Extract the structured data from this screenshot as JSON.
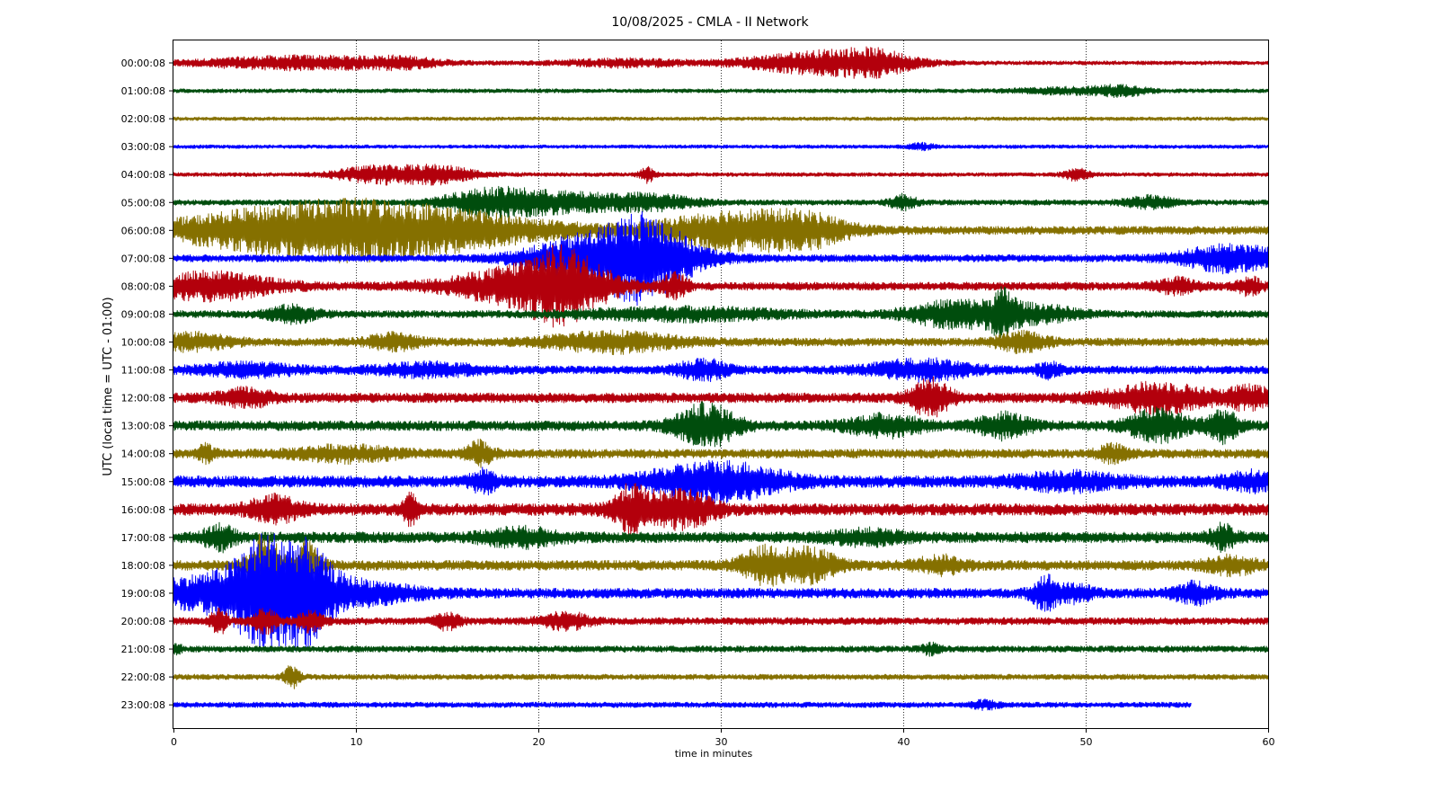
{
  "chart_data": {
    "type": "line",
    "title": "10/08/2025 - CMLA - II Network",
    "xlabel": "time in minutes",
    "ylabel": "UTC (local time = UTC - 01:00)",
    "xlim": [
      0,
      60
    ],
    "xticks": [
      0,
      10,
      20,
      30,
      40,
      50,
      60
    ],
    "grid": "vertical dotted at x ticks",
    "trace_colors": [
      "#b3000c",
      "#004d0d",
      "#857000",
      "#0000ff"
    ],
    "rows": [
      {
        "label": "00:00:08",
        "color": "#b3000c",
        "end": 60,
        "noise": 2.2,
        "events": [
          [
            7,
            4,
            7
          ],
          [
            12.5,
            1.5,
            4
          ],
          [
            24.5,
            2.5,
            4
          ],
          [
            35.5,
            3,
            12
          ],
          [
            38.5,
            1.5,
            8
          ]
        ]
      },
      {
        "label": "01:00:08",
        "color": "#004d0d",
        "end": 60,
        "noise": 2.2,
        "events": [
          [
            49,
            2,
            3
          ],
          [
            52,
            1,
            5
          ]
        ]
      },
      {
        "label": "02:00:08",
        "color": "#857000",
        "end": 60,
        "noise": 2.0,
        "events": []
      },
      {
        "label": "03:00:08",
        "color": "#0000ff",
        "end": 60,
        "noise": 2.0,
        "events": [
          [
            41,
            0.5,
            3
          ]
        ]
      },
      {
        "label": "04:00:08",
        "color": "#b3000c",
        "end": 60,
        "noise": 2.2,
        "events": [
          [
            11,
            1.5,
            9
          ],
          [
            14.5,
            1.5,
            9
          ],
          [
            26,
            0.3,
            8
          ],
          [
            49.5,
            0.5,
            6
          ]
        ]
      },
      {
        "label": "05:00:08",
        "color": "#004d0d",
        "end": 60,
        "noise": 3.0,
        "events": [
          [
            17.5,
            2,
            14
          ],
          [
            21.5,
            2,
            8
          ],
          [
            26,
            2,
            8
          ],
          [
            40,
            0.5,
            8
          ],
          [
            53.5,
            1,
            6
          ]
        ]
      },
      {
        "label": "06:00:08",
        "color": "#857000",
        "end": 60,
        "noise": 4.5,
        "events": [
          [
            8,
            6,
            18
          ],
          [
            12,
            6,
            16
          ],
          [
            31,
            3,
            20
          ],
          [
            35,
            1.5,
            10
          ]
        ]
      },
      {
        "label": "07:00:08",
        "color": "#0000ff",
        "end": 60,
        "noise": 4.0,
        "events": [
          [
            22,
            2,
            8
          ],
          [
            24.5,
            3,
            22
          ],
          [
            26,
            1.5,
            28
          ],
          [
            58,
            2,
            14
          ]
        ]
      },
      {
        "label": "08:00:08",
        "color": "#b3000c",
        "end": 60,
        "noise": 4.5,
        "events": [
          [
            2,
            2.5,
            14
          ],
          [
            19.5,
            3,
            20
          ],
          [
            21.5,
            1.5,
            26
          ],
          [
            27.5,
            0.5,
            12
          ],
          [
            55,
            0.8,
            7
          ],
          [
            59,
            0.5,
            8
          ]
        ]
      },
      {
        "label": "09:00:08",
        "color": "#004d0d",
        "end": 60,
        "noise": 4.0,
        "events": [
          [
            6.5,
            1,
            8
          ],
          [
            28,
            4,
            6
          ],
          [
            43,
            2,
            14
          ],
          [
            45.5,
            0.5,
            18
          ],
          [
            47.5,
            1.5,
            8
          ]
        ]
      },
      {
        "label": "10:00:08",
        "color": "#857000",
        "end": 60,
        "noise": 4.5,
        "events": [
          [
            1,
            1.5,
            8
          ],
          [
            12,
            1,
            8
          ],
          [
            24,
            2.5,
            10
          ],
          [
            46.5,
            1,
            10
          ]
        ]
      },
      {
        "label": "11:00:08",
        "color": "#0000ff",
        "end": 60,
        "noise": 4.5,
        "events": [
          [
            4,
            2,
            6
          ],
          [
            14,
            2,
            6
          ],
          [
            29,
            1,
            10
          ],
          [
            41,
            2,
            10
          ],
          [
            48,
            0.5,
            7
          ]
        ]
      },
      {
        "label": "12:00:08",
        "color": "#b3000c",
        "end": 60,
        "noise": 5.5,
        "events": [
          [
            4,
            1,
            8
          ],
          [
            41.5,
            0.8,
            18
          ],
          [
            54,
            2,
            14
          ],
          [
            59,
            1,
            10
          ]
        ]
      },
      {
        "label": "13:00:08",
        "color": "#004d0d",
        "end": 60,
        "noise": 5.5,
        "events": [
          [
            29.2,
            1.2,
            22
          ],
          [
            39,
            1.5,
            10
          ],
          [
            45.5,
            1,
            12
          ],
          [
            54,
            1.2,
            16
          ],
          [
            57.5,
            0.6,
            16
          ]
        ]
      },
      {
        "label": "14:00:08",
        "color": "#857000",
        "end": 60,
        "noise": 5.0,
        "events": [
          [
            1.8,
            0.3,
            9
          ],
          [
            9.5,
            2,
            7
          ],
          [
            16.8,
            0.5,
            12
          ],
          [
            51.5,
            0.6,
            8
          ]
        ]
      },
      {
        "label": "15:00:08",
        "color": "#0000ff",
        "end": 60,
        "noise": 6.5,
        "events": [
          [
            17,
            0.5,
            10
          ],
          [
            28,
            2,
            10
          ],
          [
            31,
            2,
            14
          ],
          [
            49,
            2,
            8
          ],
          [
            59,
            1,
            8
          ]
        ]
      },
      {
        "label": "16:00:08",
        "color": "#b3000c",
        "end": 60,
        "noise": 6.5,
        "events": [
          [
            5.5,
            1,
            12
          ],
          [
            13,
            0.3,
            14
          ],
          [
            25,
            0.6,
            16
          ],
          [
            26.5,
            1.5,
            14
          ],
          [
            28.5,
            1,
            10
          ]
        ]
      },
      {
        "label": "17:00:08",
        "color": "#004d0d",
        "end": 60,
        "noise": 6.0,
        "events": [
          [
            2.5,
            0.6,
            12
          ],
          [
            19,
            1.5,
            8
          ],
          [
            38,
            1.5,
            6
          ],
          [
            57.5,
            0.5,
            12
          ]
        ]
      },
      {
        "label": "18:00:08",
        "color": "#857000",
        "end": 60,
        "noise": 5.5,
        "events": [
          [
            5,
            0.6,
            34
          ],
          [
            7.3,
            0.5,
            24
          ],
          [
            32.5,
            1,
            18
          ],
          [
            35,
            1,
            16
          ],
          [
            42,
            1,
            8
          ],
          [
            58,
            1,
            8
          ]
        ]
      },
      {
        "label": "19:00:08",
        "color": "#0000ff",
        "end": 60,
        "noise": 5.5,
        "events": [
          [
            2.5,
            3,
            18
          ],
          [
            5,
            1.2,
            46
          ],
          [
            7.3,
            1,
            36
          ],
          [
            9.5,
            2.5,
            12
          ],
          [
            47.8,
            0.5,
            18
          ],
          [
            49.5,
            0.6,
            8
          ],
          [
            56,
            0.8,
            10
          ]
        ]
      },
      {
        "label": "20:00:08",
        "color": "#b3000c",
        "end": 60,
        "noise": 4.0,
        "events": [
          [
            2.5,
            0.3,
            14
          ],
          [
            5,
            0.5,
            12
          ],
          [
            7.5,
            0.5,
            10
          ],
          [
            15,
            0.5,
            8
          ],
          [
            21.5,
            1,
            8
          ]
        ]
      },
      {
        "label": "21:00:08",
        "color": "#004d0d",
        "end": 60,
        "noise": 3.5,
        "events": [
          [
            0.2,
            0.2,
            4
          ],
          [
            41.5,
            0.4,
            5
          ]
        ]
      },
      {
        "label": "22:00:08",
        "color": "#857000",
        "end": 60,
        "noise": 3.0,
        "events": [
          [
            6.5,
            0.3,
            12
          ]
        ]
      },
      {
        "label": "23:00:08",
        "color": "#0000ff",
        "end": 55.8,
        "noise": 3.0,
        "events": [
          [
            44.5,
            0.5,
            4
          ]
        ]
      }
    ]
  }
}
